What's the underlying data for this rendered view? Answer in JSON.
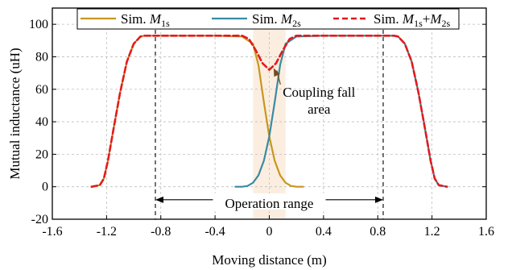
{
  "chart_data": {
    "type": "line",
    "xlabel": "Moving distance (m)",
    "ylabel": "Mutual inductance (uH)",
    "xlim": [
      -1.6,
      1.6
    ],
    "ylim": [
      -20,
      110
    ],
    "xticks": [
      -1.6,
      -1.2,
      -0.8,
      -0.4,
      0,
      0.4,
      0.8,
      1.2,
      1.6
    ],
    "xtick_labels": [
      "-1.6",
      "-1.2",
      "-0.8",
      "-0.4",
      "0",
      "0.4",
      "0.8",
      "1.2",
      "1.6"
    ],
    "yticks": [
      -20,
      0,
      20,
      40,
      60,
      80,
      100
    ],
    "ytick_labels": [
      "-20",
      "0",
      "20",
      "40",
      "60",
      "80",
      "100"
    ],
    "grid": true,
    "legend_position": "top",
    "legend": [
      {
        "prefix": "Sim. ",
        "symbol": "M",
        "subscript": "1s",
        "rest": ""
      },
      {
        "prefix": "Sim. ",
        "symbol": "M",
        "subscript": "2s",
        "rest": ""
      },
      {
        "prefix": "Sim. ",
        "symbol": "M",
        "subscript": "1s",
        "rest": "+M",
        "subscript2": "2s"
      }
    ],
    "series": [
      {
        "color": "#c8961e",
        "style": "solid",
        "x": [
          -1.31,
          -1.25,
          -1.22,
          -1.19,
          -1.15,
          -1.1,
          -1.05,
          -1.0,
          -0.95,
          -0.92,
          -0.88,
          -0.8,
          -0.6,
          -0.4,
          -0.2,
          -0.12,
          -0.08,
          -0.04,
          0.0,
          0.04,
          0.08,
          0.12,
          0.16,
          0.2,
          0.25
        ],
        "y": [
          0,
          1,
          5,
          16,
          35,
          58,
          77,
          88,
          92.5,
          93,
          93,
          93,
          93,
          93,
          92.5,
          88,
          75,
          52,
          31,
          16,
          7,
          2.5,
          0.5,
          0,
          0
        ]
      },
      {
        "color": "#3a8ba3",
        "style": "solid",
        "x": [
          -0.25,
          -0.2,
          -0.16,
          -0.12,
          -0.08,
          -0.04,
          0.0,
          0.04,
          0.08,
          0.12,
          0.2,
          0.4,
          0.6,
          0.8,
          0.88,
          0.92,
          0.95,
          1.0,
          1.05,
          1.1,
          1.15,
          1.19,
          1.22,
          1.25,
          1.31
        ],
        "y": [
          0,
          0,
          0.5,
          2.5,
          7,
          16,
          31,
          52,
          75,
          88,
          92.5,
          93,
          93,
          93,
          93,
          93,
          92.5,
          88,
          77,
          58,
          35,
          16,
          5,
          1,
          0
        ]
      },
      {
        "color": "#e31a1c",
        "style": "dashed",
        "x": [
          -1.31,
          -1.25,
          -1.22,
          -1.19,
          -1.15,
          -1.1,
          -1.05,
          -1.0,
          -0.95,
          -0.92,
          -0.88,
          -0.8,
          -0.6,
          -0.4,
          -0.2,
          -0.15,
          -0.1,
          -0.05,
          0.0,
          0.05,
          0.1,
          0.15,
          0.2,
          0.4,
          0.6,
          0.8,
          0.88,
          0.92,
          0.95,
          1.0,
          1.05,
          1.1,
          1.15,
          1.19,
          1.22,
          1.25,
          1.31
        ],
        "y": [
          0,
          1,
          5,
          16,
          35,
          58,
          77,
          88,
          92.5,
          93,
          93,
          93,
          93,
          93,
          93,
          91,
          84,
          76,
          72,
          76,
          84,
          91,
          93,
          93,
          93,
          93,
          93,
          93,
          92.5,
          88,
          77,
          58,
          35,
          16,
          5,
          1,
          0
        ]
      }
    ],
    "shaded_band": {
      "x": [
        -0.12,
        0.12
      ],
      "color": "#fbeee0"
    },
    "vlines": [
      -0.84,
      0.84
    ],
    "range_arrow": {
      "x": [
        -0.84,
        0.84
      ],
      "y": -8,
      "label": "Operation range"
    },
    "annotation": {
      "text": [
        "Coupling fall",
        "area"
      ],
      "point": [
        0.02,
        74
      ],
      "text_at": [
        0.26,
        57
      ]
    }
  }
}
